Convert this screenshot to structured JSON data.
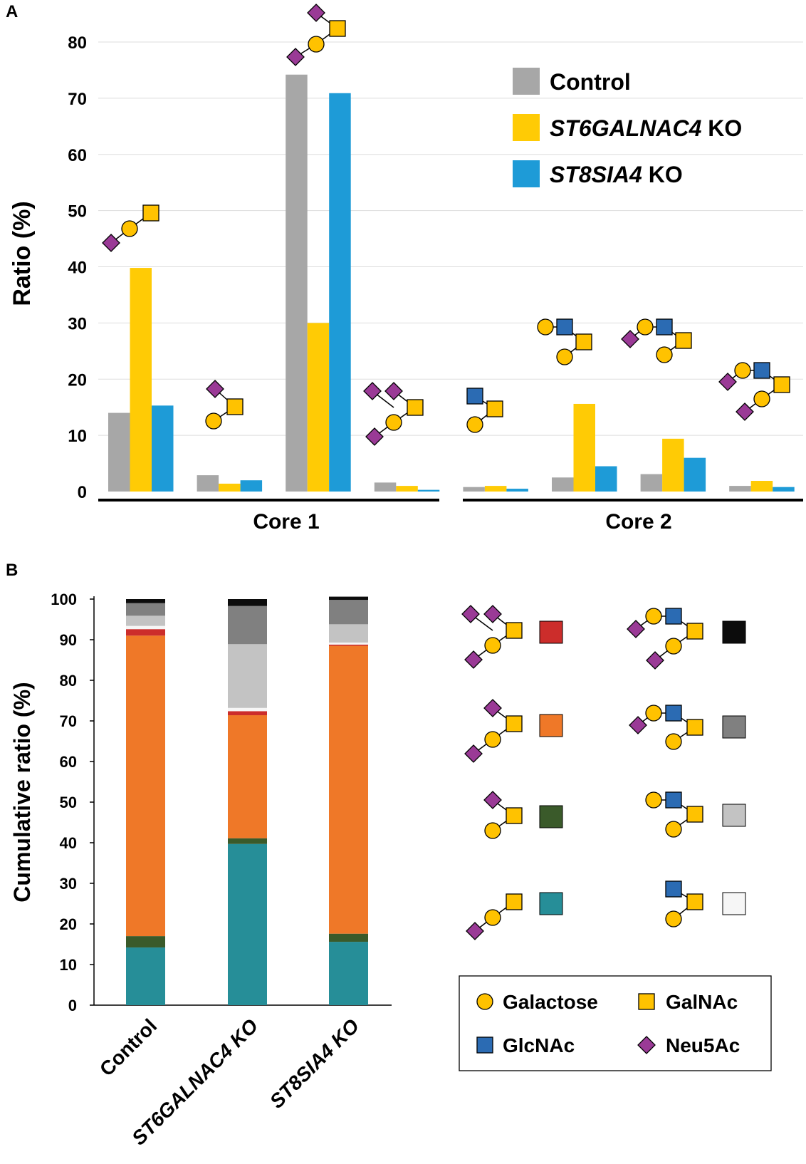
{
  "panel_labels": {
    "a": "A",
    "b": "B"
  },
  "colors": {
    "gal": "#FFC200",
    "galnac": "#FFC200",
    "glcnac": "#2B6BB3",
    "neu5ac": "#9A3A96",
    "control": "#A7A7A7",
    "st6": "#FFCB05",
    "st8": "#1E9BD7",
    "seg_teal": "#268E98",
    "seg_dkgreen": "#3A5A2A",
    "seg_orange": "#EF7828",
    "seg_red": "#CC2D2B",
    "seg_white": "#F6F6F6",
    "seg_ltgray": "#C3C3C3",
    "seg_dkgray": "#808080",
    "seg_black": "#0C0C0C"
  },
  "chart_data": [
    {
      "type": "bar",
      "panel": "A",
      "title": "",
      "xlabel": "",
      "ylabel": "Ratio (%)",
      "ylim": [
        0,
        80
      ],
      "yticks": [
        0,
        10,
        20,
        30,
        40,
        50,
        60,
        70,
        80
      ],
      "groups": [
        {
          "name": "Core 1",
          "categories": [
            0,
            1,
            2,
            3
          ]
        },
        {
          "name": "Core 2",
          "categories": [
            4,
            5,
            6,
            7
          ]
        }
      ],
      "categories": [
        "Neu5Ac-Gal-GalNAc",
        "Gal-(Neu5Ac)GalNAc",
        "Neu5Ac-Gal-(Neu5Ac)GalNAc",
        "Neu5Ac-Gal-(Neu5Ac-Neu5Ac)GalNAc",
        "Gal-(GlcNAc)GalNAc",
        "Gal-GlcNAc-(Gal)GalNAc",
        "Neu5Ac-Gal-GlcNAc-(Gal)GalNAc",
        "Neu5Ac-Gal-GlcNAc-(Neu5Ac-Gal)GalNAc"
      ],
      "series": [
        {
          "name": "Control",
          "values": [
            14.0,
            2.9,
            74.2,
            1.6,
            0.8,
            2.5,
            3.1,
            1.0
          ]
        },
        {
          "name": "ST6GALNAC4 KO",
          "values": [
            39.8,
            1.4,
            30.0,
            1.0,
            1.0,
            15.6,
            9.4,
            1.9
          ]
        },
        {
          "name": "ST8SIA4 KO",
          "values": [
            15.3,
            2.0,
            70.9,
            0.3,
            0.5,
            4.5,
            6.0,
            0.8
          ]
        }
      ],
      "legend": [
        {
          "name": "Control",
          "italic_part": "",
          "rest": "Control"
        },
        {
          "name": "ST6GALNAC4 KO",
          "italic_part": "ST6GALNAC4",
          "rest": " KO"
        },
        {
          "name": "ST8SIA4 KO",
          "italic_part": "ST8SIA4",
          "rest": " KO"
        }
      ],
      "legend_position": "top-right"
    },
    {
      "type": "bar",
      "stacked": true,
      "panel": "B",
      "title": "",
      "xlabel": "",
      "ylabel": "Cumulative ratio (%)",
      "ylim": [
        0,
        100
      ],
      "yticks": [
        0,
        10,
        20,
        30,
        40,
        50,
        60,
        70,
        80,
        90,
        100
      ],
      "categories": [
        "Control",
        "ST6GALNAC4 KO",
        "ST8SIA4 KO"
      ],
      "category_italic": [
        false,
        true,
        true
      ],
      "series": [
        {
          "name": "Neu5Ac-Gal-GalNAc",
          "color_key": "seg_teal",
          "values": [
            14.2,
            39.7,
            15.6
          ]
        },
        {
          "name": "Gal-(Neu5Ac)GalNAc",
          "color_key": "seg_dkgreen",
          "values": [
            2.8,
            1.4,
            2.0
          ]
        },
        {
          "name": "Neu5Ac-Gal-(Neu5Ac)GalNAc",
          "color_key": "seg_orange",
          "values": [
            74.0,
            30.3,
            70.9
          ]
        },
        {
          "name": "Neu5Ac-Gal-(Neu5Ac-Neu5Ac)GalNAc",
          "color_key": "seg_red",
          "values": [
            1.6,
            1.0,
            0.3
          ]
        },
        {
          "name": "Gal-(GlcNAc)GalNAc",
          "color_key": "seg_white",
          "values": [
            0.8,
            0.8,
            0.5
          ]
        },
        {
          "name": "Gal-GlcNAc-(Gal)GalNAc",
          "color_key": "seg_ltgray",
          "values": [
            2.5,
            15.7,
            4.5
          ]
        },
        {
          "name": "Neu5Ac-Gal-GlcNAc-(Gal)GalNAc",
          "color_key": "seg_dkgray",
          "values": [
            3.1,
            9.4,
            6.0
          ]
        },
        {
          "name": "Neu5Ac-Gal-GlcNAc-(Neu5Ac-Gal)GalNAc",
          "color_key": "seg_black",
          "values": [
            1.0,
            1.7,
            0.8
          ]
        }
      ]
    }
  ],
  "symbol_legend": [
    {
      "key": "gal",
      "label": "Galactose"
    },
    {
      "key": "galnac",
      "label": "GalNAc"
    },
    {
      "key": "glcnac",
      "label": "GlcNAc"
    },
    {
      "key": "neu5ac",
      "label": "Neu5Ac"
    }
  ]
}
